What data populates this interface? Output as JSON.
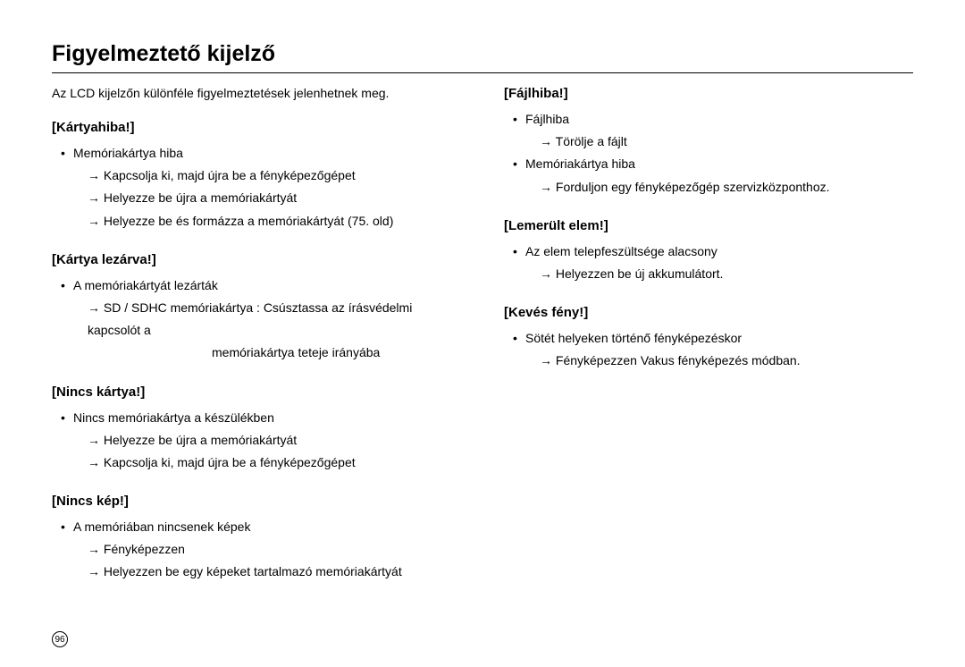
{
  "title": "Figyelmeztető kijelző",
  "intro": "Az LCD kijelzőn különféle figyelmeztetések jelenhetnek meg.",
  "left": {
    "s1": {
      "title": "[Kártyahiba!]",
      "b1": "Memóriakártya hiba",
      "a1": "Kapcsolja ki, majd újra be a fényképezőgépet",
      "a2": "Helyezze be újra a memóriakártyát",
      "a3": "Helyezze be és formázza a memóriakártyát (75. old)"
    },
    "s2": {
      "title": "[Kártya lezárva!]",
      "b1": "A memóriakártyát lezárták",
      "a1": "SD / SDHC memóriakártya : Csúsztassa az írásvédelmi kapcsolót a",
      "a1c": "memóriakártya teteje irányába"
    },
    "s3": {
      "title": "[Nincs kártya!]",
      "b1": "Nincs memóriakártya a készülékben",
      "a1": "Helyezze be újra a memóriakártyát",
      "a2": "Kapcsolja ki, majd újra be a fényképezőgépet"
    },
    "s4": {
      "title": "[Nincs kép!]",
      "b1": "A memóriában nincsenek képek",
      "a1": "Fényképezzen",
      "a2": "Helyezzen be egy képeket tartalmazó memóriakártyát"
    }
  },
  "right": {
    "s1": {
      "title": "[Fájlhiba!]",
      "b1": "Fájlhiba",
      "a1": "Törölje a fájlt",
      "b2": "Memóriakártya hiba",
      "a2": "Forduljon egy fényképezőgép szervizközponthoz."
    },
    "s2": {
      "title": "[Lemerült elem!]",
      "b1": "Az elem telepfeszültsége alacsony",
      "a1": "Helyezzen be új akkumulátort."
    },
    "s3": {
      "title": "[Kevés fény!]",
      "b1": "Sötét helyeken történő fényképezéskor",
      "a1": "Fényképezzen Vakus fényképezés módban."
    }
  },
  "page_number": "96"
}
